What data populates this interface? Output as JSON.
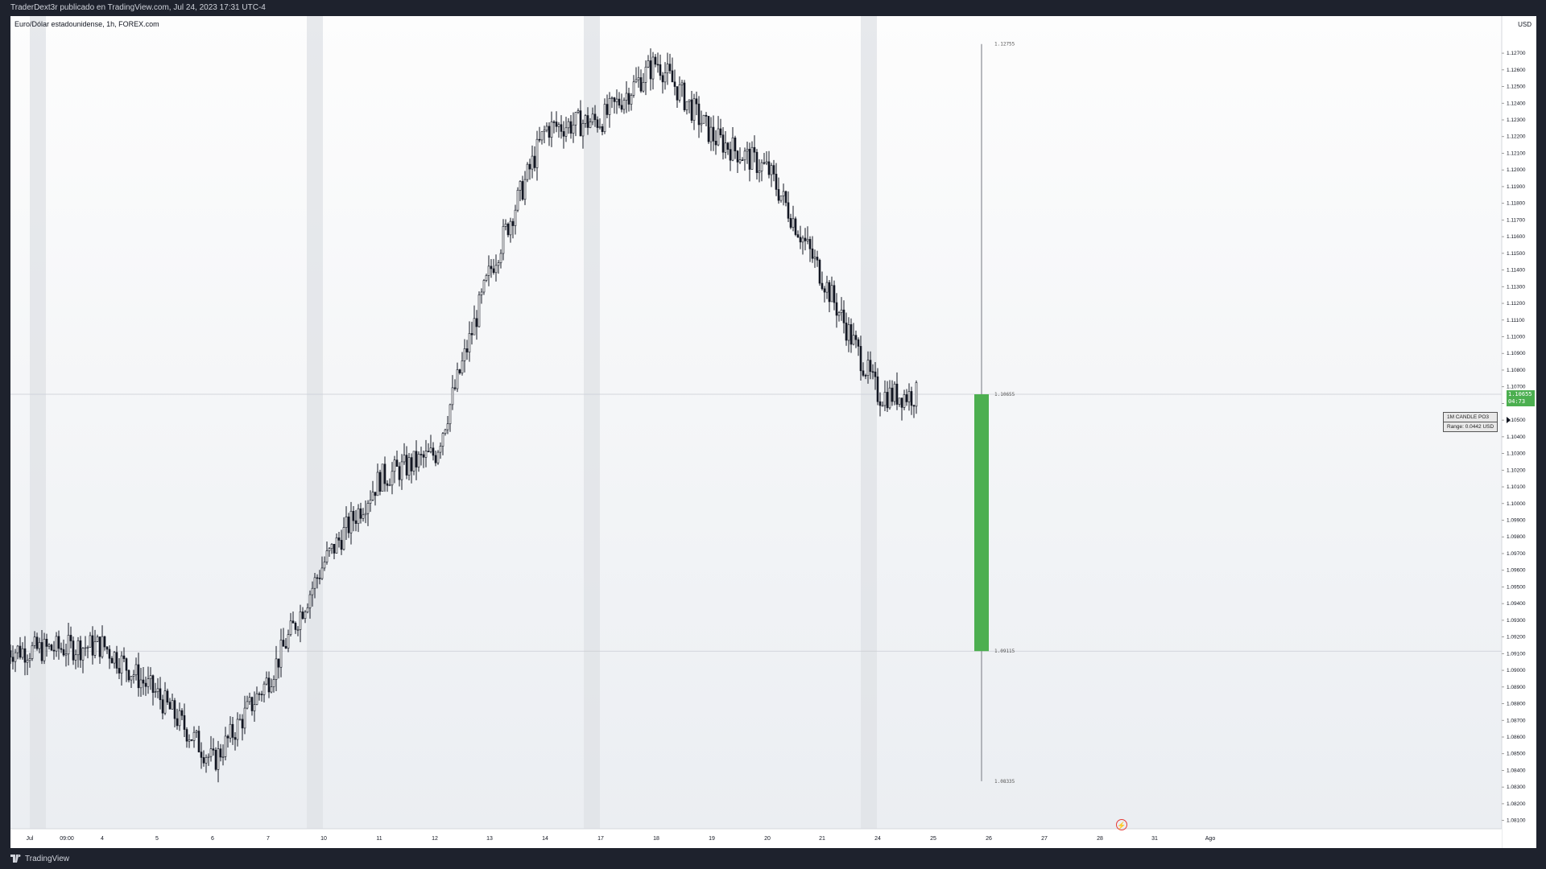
{
  "header": {
    "publish_line": "TraderDext3r publicado en TradingView.com, Jul 24, 2023 17:31 UTC-4"
  },
  "footer": {
    "brand": "TradingView",
    "logo_icon": "tradingview-logo-icon"
  },
  "chart": {
    "symbol_title": "Euro/Dólar estadounidense, 1h, FOREX.com",
    "currency": "USD",
    "last_price_badge": {
      "price": "1.10655",
      "countdown": "04:73",
      "color": "#4caf50"
    },
    "overlay_candle": {
      "high": "1.12755",
      "open": "1.10655",
      "close": "1.09115",
      "low": "1.08335",
      "label": "1M CANDLE PO3",
      "range_text": "Range: 0.0442 USD",
      "color": "#4caf50"
    },
    "replay_icon": "replay-icon"
  },
  "chart_data": {
    "type": "candlestick",
    "title": "Euro/Dólar estadounidense, 1h, FOREX.com",
    "y_ticks": [
      "1.12700",
      "1.12600",
      "1.12500",
      "1.12400",
      "1.12300",
      "1.12200",
      "1.12100",
      "1.12000",
      "1.11900",
      "1.11800",
      "1.11700",
      "1.11600",
      "1.11500",
      "1.11400",
      "1.11300",
      "1.11200",
      "1.11100",
      "1.11000",
      "1.10900",
      "1.10800",
      "1.10700",
      "1.10600",
      "1.10500",
      "1.10400",
      "1.10300",
      "1.10200",
      "1.10100",
      "1.10000",
      "1.09900",
      "1.09800",
      "1.09700",
      "1.09600",
      "1.09500",
      "1.09400",
      "1.09300",
      "1.09200",
      "1.09100",
      "1.09000",
      "1.08900",
      "1.08800",
      "1.08700",
      "1.08600",
      "1.08500",
      "1.08400",
      "1.08300",
      "1.08200",
      "1.08100"
    ],
    "ylim": [
      1.0805,
      1.1285
    ],
    "x_ticks": [
      "Jul",
      "09:00",
      "4",
      "5",
      "6",
      "7",
      "10",
      "11",
      "12",
      "13",
      "14",
      "17",
      "18",
      "19",
      "20",
      "21",
      "24",
      "25",
      "26",
      "27",
      "28",
      "31",
      "Ago"
    ],
    "price_path": [
      {
        "x": "Jul",
        "y": 1.0912
      },
      {
        "x": "4",
        "y": 1.0915
      },
      {
        "x": "5",
        "y": 1.0885
      },
      {
        "x": "6",
        "y": 1.0845
      },
      {
        "x": "7",
        "y": 1.0895
      },
      {
        "x": "10",
        "y": 1.0965
      },
      {
        "x": "11",
        "y": 1.1015
      },
      {
        "x": "12",
        "y": 1.103
      },
      {
        "x": "13",
        "y": 1.114
      },
      {
        "x": "14",
        "y": 1.1225
      },
      {
        "x": "17",
        "y": 1.123
      },
      {
        "x": "18",
        "y": 1.1265
      },
      {
        "x": "19",
        "y": 1.122
      },
      {
        "x": "20",
        "y": 1.12
      },
      {
        "x": "21",
        "y": 1.1135
      },
      {
        "x": "24",
        "y": 1.1065
      }
    ],
    "weekend_sessions": [
      "Jul 1-2",
      "Jul 8-9",
      "Jul 15-16",
      "Jul 22-23"
    ],
    "horizontal_lines": [
      1.10655,
      1.09115
    ]
  }
}
